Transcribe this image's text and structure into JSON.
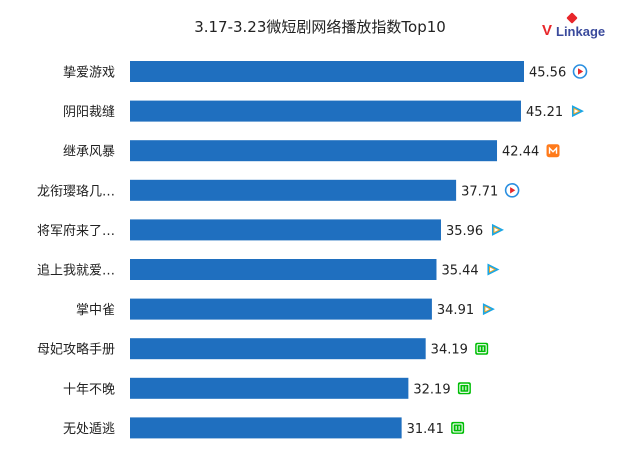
{
  "title": "3.17-3.23微短剧网络播放指数Top10",
  "logo_text": "VLinkage",
  "chart_data": {
    "type": "bar",
    "orientation": "horizontal",
    "title": "3.17-3.23微短剧网络播放指数Top10",
    "categories": [
      "挚爱游戏",
      "阴阳裁缝",
      "继承风暴",
      "龙衔璎珞几…",
      "将军府来了…",
      "追上我就爱…",
      "掌中雀",
      "母妃攻略手册",
      "十年不晚",
      "无处遁逃"
    ],
    "values": [
      45.56,
      45.21,
      42.44,
      37.71,
      35.96,
      35.44,
      34.91,
      34.19,
      32.19,
      31.41
    ],
    "value_labels": [
      "45.56",
      "45.21",
      "42.44",
      "37.71",
      "35.96",
      "35.44",
      "34.91",
      "34.19",
      "32.19",
      "31.41"
    ],
    "platform_icons": [
      "youku-icon",
      "tencent-video-icon",
      "mangotv-icon",
      "youku-icon",
      "tencent-video-icon",
      "tencent-video-icon",
      "tencent-video-icon",
      "iqiyi-icon",
      "iqiyi-icon",
      "iqiyi-icon"
    ],
    "bar_color": "#1f6fbf",
    "grid": false,
    "legend": "none"
  },
  "colors": {
    "bar": "#1f6fbf",
    "youku": "#2a8fe0",
    "tencent": "#1aa6e6",
    "tencent_accent": "#f5a623",
    "mango": "#ff7a1a",
    "iqiyi": "#00be06"
  }
}
